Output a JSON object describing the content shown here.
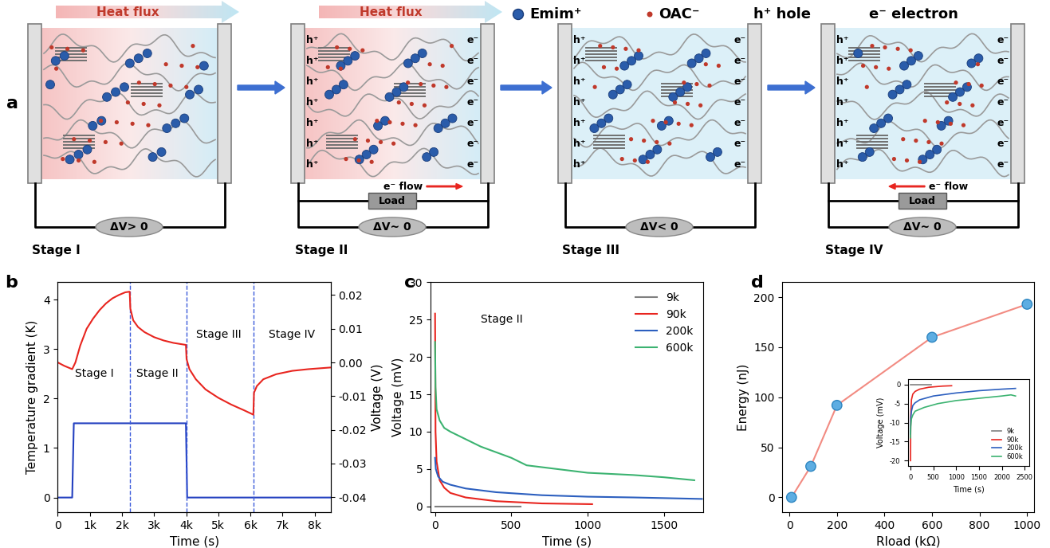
{
  "diagram": {
    "label": "a",
    "heat_flux": "Heat flux",
    "legend": [
      {
        "label": "Emim⁺",
        "color": "#2a5caa"
      },
      {
        "label": "OAC⁻",
        "color": "#c0392b"
      },
      {
        "label": "h⁺ hole"
      },
      {
        "label": "e⁻ electron"
      }
    ],
    "hole": "h⁺",
    "electron": "e⁻",
    "stages": [
      {
        "name": "Stage I",
        "voltage": "ΔV> 0",
        "heat_flux": true,
        "charged": false
      },
      {
        "name": "Stage II",
        "voltage": "ΔV~ 0",
        "heat_flux": true,
        "charged": true,
        "load": "Load",
        "flow": "e⁻ flow",
        "flow_direction": "right"
      },
      {
        "name": "Stage III",
        "voltage": "ΔV< 0",
        "heat_flux": false,
        "charged": true
      },
      {
        "name": "Stage IV",
        "voltage": "ΔV~ 0",
        "heat_flux": false,
        "charged": true,
        "load": "Load",
        "flow": "e⁻ flow",
        "flow_direction": "left"
      }
    ]
  },
  "chart_data": [
    {
      "label": "b",
      "type": "line",
      "x_label": "Time (s)",
      "y_label": "Temperature gradient (K)",
      "y2_label": "Voltage (V)",
      "xlim": [
        0,
        8500
      ],
      "xticks": [
        0,
        {
          "value": 1000,
          "label": "1k"
        },
        {
          "value": 2000,
          "label": "2k"
        },
        {
          "value": 3000,
          "label": "3k"
        },
        {
          "value": 4000,
          "label": "4k"
        },
        {
          "value": 5000,
          "label": "5k"
        },
        {
          "value": 6000,
          "label": "6k"
        },
        {
          "value": 7000,
          "label": "7k"
        },
        {
          "value": 8000,
          "label": "8k"
        }
      ],
      "ylim": [
        -0.3,
        4.35
      ],
      "yticks": [
        0,
        1,
        2,
        3,
        4
      ],
      "y2lim": [
        -0.0445,
        0.0238
      ],
      "y2ticks": [
        0.02,
        0.01,
        {
          "value": 0,
          "label": "0.00"
        },
        -0.01,
        -0.02,
        -0.03,
        -0.04
      ],
      "vlines": [
        2250,
        4000,
        6100
      ],
      "annotations": [
        {
          "text": "Stage I",
          "x": 1150,
          "y": 2.5
        },
        {
          "text": "Stage II",
          "x": 3100,
          "y": 2.5
        },
        {
          "text": "Stage III",
          "x": 5000,
          "y": 3.3
        },
        {
          "text": "Stage IV",
          "x": 7300,
          "y": 3.3
        }
      ],
      "series": [
        {
          "axis": "y",
          "color": "#2340c0",
          "x": [
            0,
            450,
            500,
            2250,
            3990,
            4030,
            8500
          ],
          "values": [
            0,
            0,
            1.5,
            1.5,
            1.5,
            0,
            0
          ]
        },
        {
          "axis": "y2",
          "color": "#e8251f",
          "x": [
            0,
            200,
            450,
            550,
            700,
            900,
            1100,
            1300,
            1500,
            1700,
            1900,
            2100,
            2240,
            2260,
            2350,
            2500,
            2700,
            3000,
            3300,
            3600,
            3990,
            4010,
            4100,
            4300,
            4600,
            5000,
            5400,
            5800,
            6090,
            6110,
            6200,
            6400,
            6800,
            7300,
            7800,
            8500
          ],
          "values": [
            0.0,
            -0.001,
            -0.002,
            0.0,
            0.005,
            0.01,
            0.013,
            0.0155,
            0.0175,
            0.019,
            0.02,
            0.0208,
            0.021,
            0.016,
            0.0125,
            0.0105,
            0.009,
            0.0075,
            0.0065,
            0.0058,
            0.0052,
            0.001,
            -0.002,
            -0.005,
            -0.008,
            -0.0105,
            -0.0125,
            -0.0142,
            -0.0155,
            -0.009,
            -0.007,
            -0.005,
            -0.0035,
            -0.0025,
            -0.002,
            -0.0015
          ]
        }
      ]
    },
    {
      "label": "c",
      "type": "line",
      "x_label": "Time (s)",
      "y_label": "Voltage (mV)",
      "xlim": [
        -30,
        1760
      ],
      "xticks": [
        0,
        500,
        1000,
        1500
      ],
      "ylim": [
        -0.8,
        30
      ],
      "yticks": [
        0,
        5,
        10,
        15,
        20,
        25,
        30
      ],
      "legend": "upper right",
      "annotations": [
        {
          "text": "Stage II",
          "x": 300,
          "y": 25
        }
      ],
      "series": [
        {
          "name": "9k",
          "color": "#808080",
          "x": [
            0,
            560
          ],
          "values": [
            0,
            0
          ]
        },
        {
          "name": "90k",
          "color": "#e8251f",
          "x": [
            0,
            3,
            10,
            30,
            60,
            100,
            200,
            400,
            700,
            1030
          ],
          "values": [
            25.8,
            10,
            6,
            3.5,
            2.5,
            1.8,
            1.2,
            0.7,
            0.4,
            0.3
          ]
        },
        {
          "name": "200k",
          "color": "#2c5fbf",
          "x": [
            0,
            5,
            20,
            50,
            100,
            200,
            400,
            700,
            1000,
            1300,
            1750
          ],
          "values": [
            6.5,
            5,
            4,
            3.3,
            2.9,
            2.4,
            1.9,
            1.5,
            1.3,
            1.2,
            1.0
          ]
        },
        {
          "name": "600k",
          "color": "#3cb371",
          "x": [
            0,
            3,
            10,
            30,
            60,
            100,
            200,
            300,
            500,
            560,
            600,
            800,
            1000,
            1300,
            1500,
            1700
          ],
          "values": [
            22,
            16,
            13,
            11.5,
            10.5,
            10,
            9,
            8,
            6.5,
            5.9,
            5.5,
            5,
            4.5,
            4.2,
            3.9,
            3.5
          ]
        }
      ]
    },
    {
      "label": "d",
      "type": "line",
      "x_label": "Rload (kΩ)",
      "y_label": "Energy (nJ)",
      "xlim": [
        -30,
        1030
      ],
      "xticks": [
        0,
        200,
        400,
        600,
        800,
        1000
      ],
      "ylim": [
        -15,
        215
      ],
      "yticks": [
        0,
        50,
        100,
        150,
        200
      ],
      "series": [
        {
          "x": [
            9,
            90,
            200,
            600,
            1000
          ],
          "values": [
            0,
            31,
            92,
            160,
            193
          ],
          "color": "#f28b82",
          "colors": [
            "#5dade2",
            "#5dade2",
            "#5dade2",
            "#5dade2",
            "#5dade2"
          ],
          "marker": "o"
        }
      ],
      "inset": {
        "type": "line",
        "x_label": "Time (s)",
        "y_label": "Voltage (mV)",
        "xlim": [
          -50,
          2600
        ],
        "xticks": [
          0,
          500,
          1000,
          1500,
          2000,
          2500
        ],
        "ylim": [
          -21.5,
          1.5
        ],
        "yticks": [
          -20,
          -15,
          -10,
          -5,
          0
        ],
        "legend": "lower right",
        "series": [
          {
            "name": "9k",
            "color": "#808080",
            "x": [
              0,
              450
            ],
            "values": [
              0,
              0
            ]
          },
          {
            "name": "90k",
            "color": "#e8251f",
            "x": [
              0,
              5,
              20,
              50,
              100,
              200,
              400,
              700,
              900
            ],
            "values": [
              -20,
              -8,
              -4,
              -2.5,
              -1.8,
              -1.2,
              -0.7,
              -0.4,
              -0.3
            ]
          },
          {
            "name": "200k",
            "color": "#2c5fbf",
            "x": [
              0,
              5,
              20,
              50,
              100,
              200,
              500,
              1000,
              1500,
              2000,
              2300
            ],
            "values": [
              -13,
              -9,
              -7,
              -5.5,
              -4.8,
              -4,
              -3,
              -2.2,
              -1.6,
              -1.2,
              -1.0
            ]
          },
          {
            "name": "600k",
            "color": "#3cb371",
            "x": [
              0,
              5,
              20,
              50,
              100,
              300,
              600,
              1000,
              1500,
              2000,
              2200,
              2300
            ],
            "values": [
              -14,
              -11,
              -9,
              -8,
              -7,
              -6,
              -5,
              -4.2,
              -3.6,
              -3.0,
              -2.7,
              -3.0
            ]
          }
        ]
      }
    }
  ]
}
